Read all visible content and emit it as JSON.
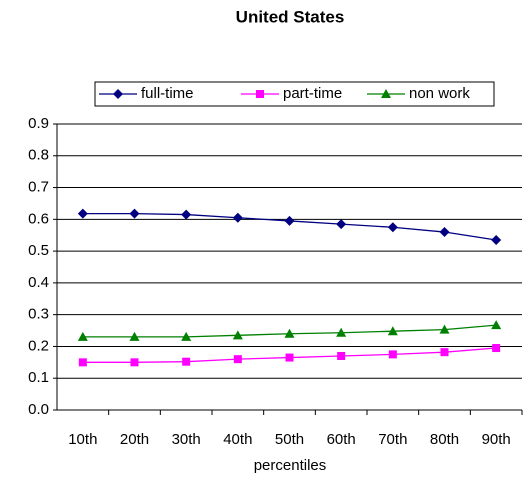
{
  "chart_data": {
    "type": "line",
    "title": "United States",
    "x_label": "percentiles",
    "categories": [
      "10th",
      "20th",
      "30th",
      "40th",
      "50th",
      "60th",
      "70th",
      "80th",
      "90th"
    ],
    "series": [
      {
        "name": "full-time",
        "color": "#000080",
        "marker": "diamond",
        "values": [
          0.618,
          0.618,
          0.615,
          0.605,
          0.595,
          0.585,
          0.575,
          0.56,
          0.535
        ]
      },
      {
        "name": "part-time",
        "color": "#ff00ff",
        "marker": "square",
        "values": [
          0.15,
          0.15,
          0.152,
          0.16,
          0.165,
          0.17,
          0.175,
          0.182,
          0.195
        ]
      },
      {
        "name": "non work",
        "color": "#008000",
        "marker": "triangle",
        "values": [
          0.23,
          0.23,
          0.23,
          0.235,
          0.24,
          0.243,
          0.248,
          0.253,
          0.267
        ]
      }
    ],
    "ylim": [
      0,
      0.9
    ],
    "yticks": [
      {
        "value": 0,
        "label": "0.0"
      },
      0.1,
      0.2,
      0.3,
      0.4,
      0.5,
      0.6,
      0.7,
      0.8,
      0.9
    ],
    "grid": true,
    "legend": "top"
  }
}
